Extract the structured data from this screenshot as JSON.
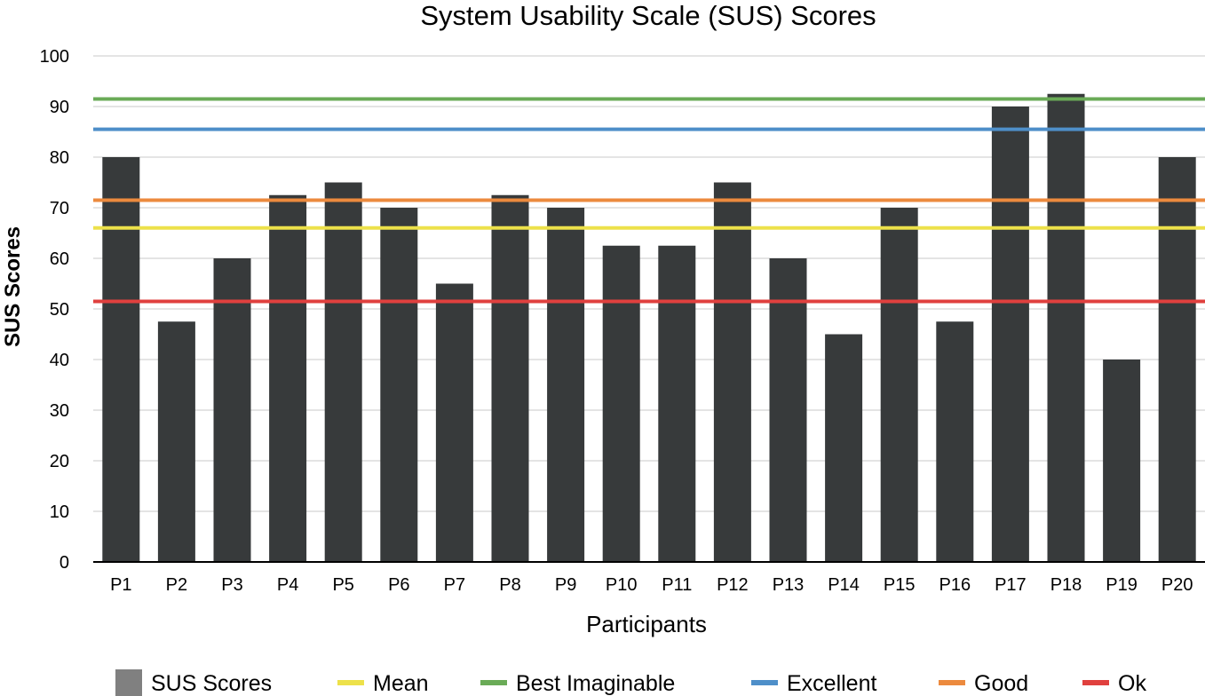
{
  "chart_data": {
    "type": "bar",
    "title": "System Usability Scale (SUS) Scores",
    "xlabel": "Participants",
    "ylabel": "SUS Scores",
    "ylim": [
      0,
      100
    ],
    "yticks": [
      0,
      10,
      20,
      30,
      40,
      50,
      60,
      70,
      80,
      90,
      100
    ],
    "grid": true,
    "legend_position": "bottom",
    "categories": [
      "P1",
      "P2",
      "P3",
      "P4",
      "P5",
      "P6",
      "P7",
      "P8",
      "P9",
      "P10",
      "P11",
      "P12",
      "P13",
      "P14",
      "P15",
      "P16",
      "P17",
      "P18",
      "P19",
      "P20"
    ],
    "series": [
      {
        "name": "SUS Scores",
        "color": "#373a3b",
        "values": [
          80,
          47.5,
          60,
          72.5,
          75,
          70,
          55,
          72.5,
          70,
          62.5,
          62.5,
          75,
          60,
          45,
          70,
          47.5,
          90,
          92.5,
          40,
          80
        ]
      }
    ],
    "reference_lines": [
      {
        "name": "Mean",
        "value": 66,
        "color": "#ede14a"
      },
      {
        "name": "Best Imaginable",
        "value": 91.5,
        "color": "#6aab57"
      },
      {
        "name": "Excellent",
        "value": 85.5,
        "color": "#4e8fc9"
      },
      {
        "name": "Good",
        "value": 71.5,
        "color": "#ec8a3e"
      },
      {
        "name": "Ok",
        "value": 51.5,
        "color": "#e0403e"
      }
    ],
    "legend": [
      {
        "name": "SUS Scores",
        "color": "#808080",
        "marker": "square"
      },
      {
        "name": "Mean",
        "color": "#ede14a",
        "marker": "line"
      },
      {
        "name": "Best Imaginable",
        "color": "#6aab57",
        "marker": "line"
      },
      {
        "name": "Excellent",
        "color": "#4e8fc9",
        "marker": "line"
      },
      {
        "name": "Good",
        "color": "#ec8a3e",
        "marker": "line"
      },
      {
        "name": "Ok",
        "color": "#e0403e",
        "marker": "line"
      }
    ]
  }
}
